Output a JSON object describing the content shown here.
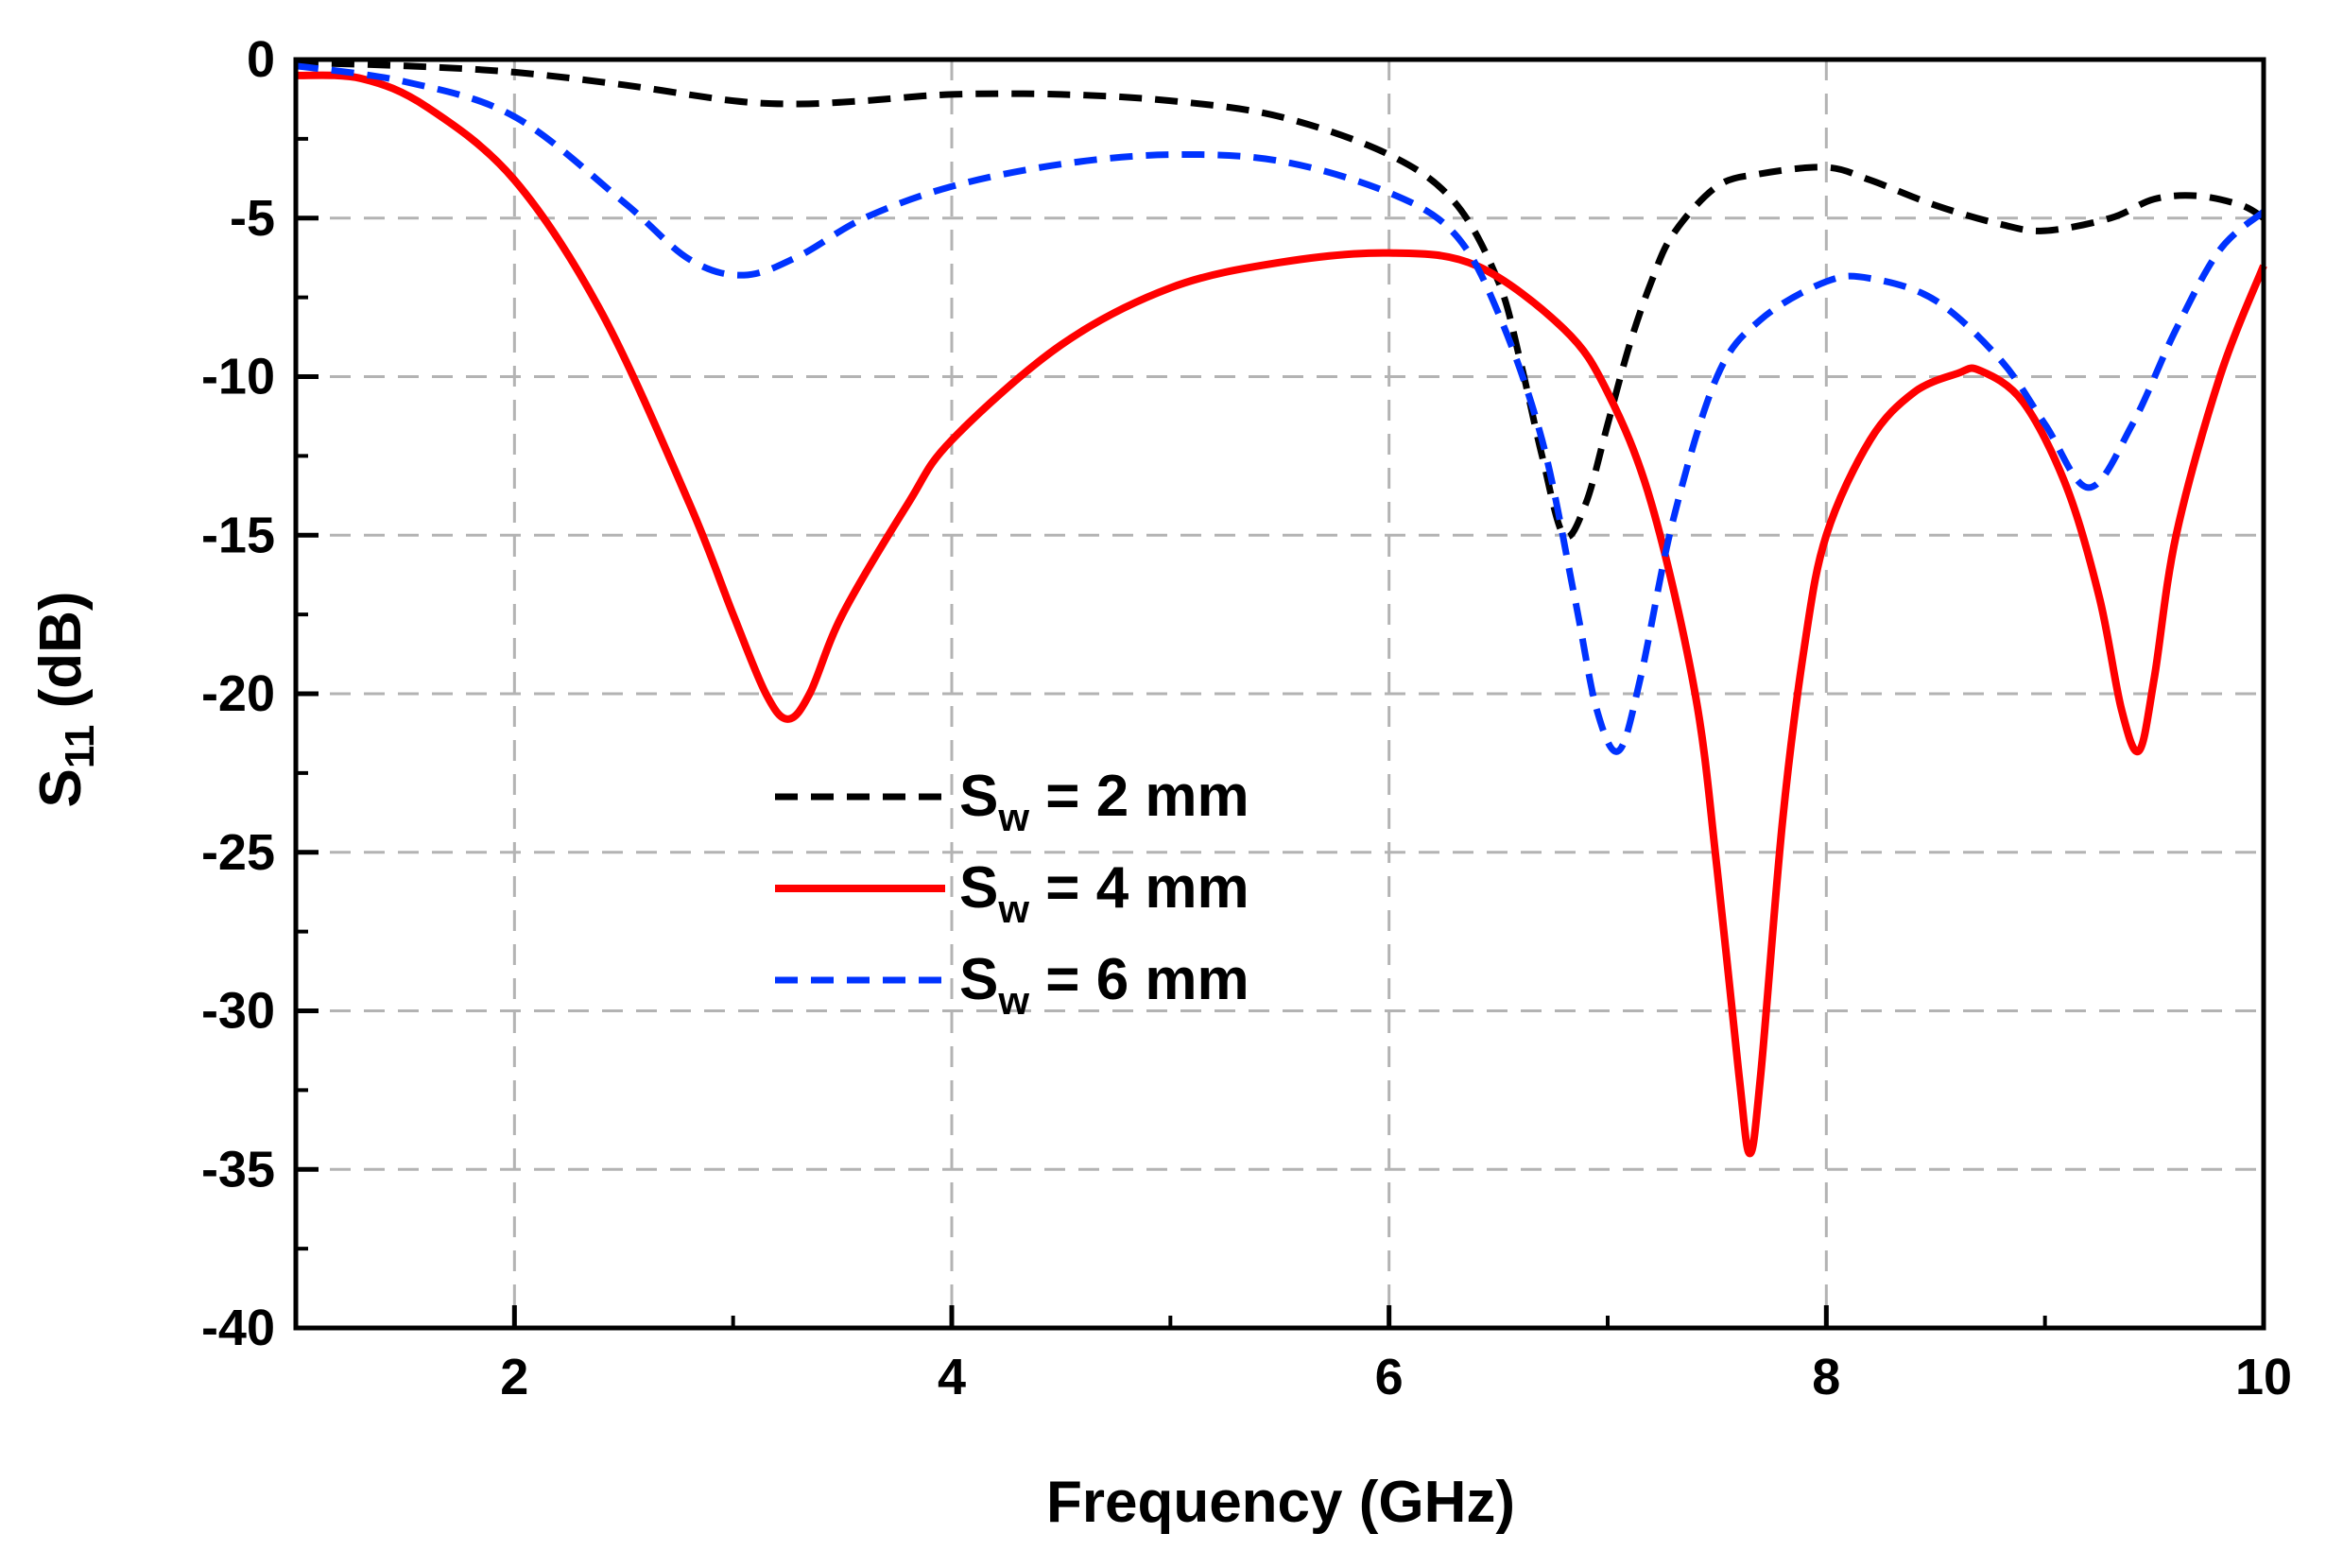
{
  "chart_data": {
    "type": "line",
    "title": "",
    "xlabel": "Frequency (GHz)",
    "ylabel_main": "S",
    "ylabel_sub": "11",
    "ylabel_unit": " (dB)",
    "xlim": [
      1,
      10
    ],
    "ylim": [
      -40,
      0
    ],
    "xticks": [
      2,
      4,
      6,
      8,
      10
    ],
    "yticks": [
      0,
      -5,
      -10,
      -15,
      -20,
      -25,
      -30,
      -35,
      -40
    ],
    "xtick_labels": [
      "2",
      "4",
      "6",
      "8",
      "10"
    ],
    "ytick_labels": [
      "0",
      "-5",
      "-10",
      "-15",
      "-20",
      "-25",
      "-30",
      "-35",
      "-40"
    ],
    "grid": true,
    "legend_position": "center",
    "series": [
      {
        "name": "S_w = 2 mm",
        "legend_main": "S",
        "legend_sub": "w",
        "legend_rest": " = 2 mm",
        "color": "#000000",
        "style": "dash",
        "x": [
          1.0,
          1.5,
          2.0,
          2.5,
          3.0,
          3.3,
          3.6,
          4.0,
          4.5,
          5.0,
          5.5,
          6.0,
          6.3,
          6.5,
          6.6,
          6.7,
          6.8,
          6.9,
          7.0,
          7.1,
          7.2,
          7.3,
          7.5,
          7.7,
          8.0,
          8.2,
          8.5,
          8.8,
          9.0,
          9.3,
          9.5,
          9.7,
          9.9,
          10.0
        ],
        "y": [
          -0.1,
          -0.2,
          -0.4,
          -0.8,
          -1.3,
          -1.4,
          -1.3,
          -1.1,
          -1.1,
          -1.3,
          -1.8,
          -3.0,
          -4.5,
          -7.0,
          -9.5,
          -12.5,
          -15.0,
          -14.0,
          -11.5,
          -9.0,
          -7.0,
          -5.5,
          -4.0,
          -3.6,
          -3.4,
          -3.8,
          -4.6,
          -5.2,
          -5.4,
          -5.0,
          -4.4,
          -4.3,
          -4.6,
          -5.0
        ]
      },
      {
        "name": "S_w = 4 mm",
        "legend_main": "S",
        "legend_sub": "w",
        "legend_rest": " = 4 mm",
        "color": "#ff0000",
        "style": "solid",
        "x": [
          1.0,
          1.3,
          1.6,
          2.0,
          2.4,
          2.8,
          3.0,
          3.15,
          3.25,
          3.35,
          3.5,
          3.8,
          4.0,
          4.5,
          5.0,
          5.5,
          6.0,
          6.4,
          6.8,
          7.0,
          7.2,
          7.4,
          7.5,
          7.6,
          7.65,
          7.7,
          7.8,
          7.9,
          8.0,
          8.2,
          8.4,
          8.6,
          8.7,
          8.9,
          9.1,
          9.25,
          9.35,
          9.43,
          9.5,
          9.6,
          9.8,
          10.0
        ],
        "y": [
          -0.5,
          -0.6,
          -1.5,
          -3.8,
          -8.0,
          -14.0,
          -17.5,
          -20.0,
          -20.8,
          -20.0,
          -17.5,
          -14.0,
          -12.0,
          -9.0,
          -7.2,
          -6.4,
          -6.1,
          -6.5,
          -8.5,
          -10.5,
          -14.0,
          -20.0,
          -25.5,
          -32.0,
          -34.5,
          -32.0,
          -24.0,
          -18.5,
          -15.0,
          -12.0,
          -10.5,
          -9.9,
          -9.8,
          -10.8,
          -13.5,
          -17.0,
          -20.5,
          -21.8,
          -19.5,
          -15.0,
          -10.0,
          -6.5
        ]
      },
      {
        "name": "S_w = 6 mm",
        "legend_main": "S",
        "legend_sub": "w",
        "legend_rest": " = 6 mm",
        "color": "#0033ff",
        "style": "dash",
        "x": [
          1.0,
          1.5,
          2.0,
          2.5,
          2.8,
          3.05,
          3.3,
          3.6,
          4.0,
          4.5,
          5.0,
          5.5,
          6.0,
          6.3,
          6.5,
          6.7,
          6.85,
          6.95,
          7.05,
          7.15,
          7.3,
          7.5,
          7.7,
          8.0,
          8.2,
          8.5,
          8.8,
          9.0,
          9.2,
          9.4,
          9.6,
          9.8,
          10.0
        ],
        "y": [
          -0.2,
          -0.7,
          -1.8,
          -4.5,
          -6.3,
          -6.8,
          -6.2,
          -5.0,
          -4.0,
          -3.3,
          -3.0,
          -3.2,
          -4.2,
          -5.5,
          -8.0,
          -12.0,
          -17.0,
          -20.5,
          -21.8,
          -19.5,
          -14.5,
          -10.0,
          -8.2,
          -7.0,
          -6.9,
          -7.6,
          -9.5,
          -11.5,
          -13.5,
          -11.5,
          -8.5,
          -6.0,
          -4.8
        ]
      }
    ]
  }
}
